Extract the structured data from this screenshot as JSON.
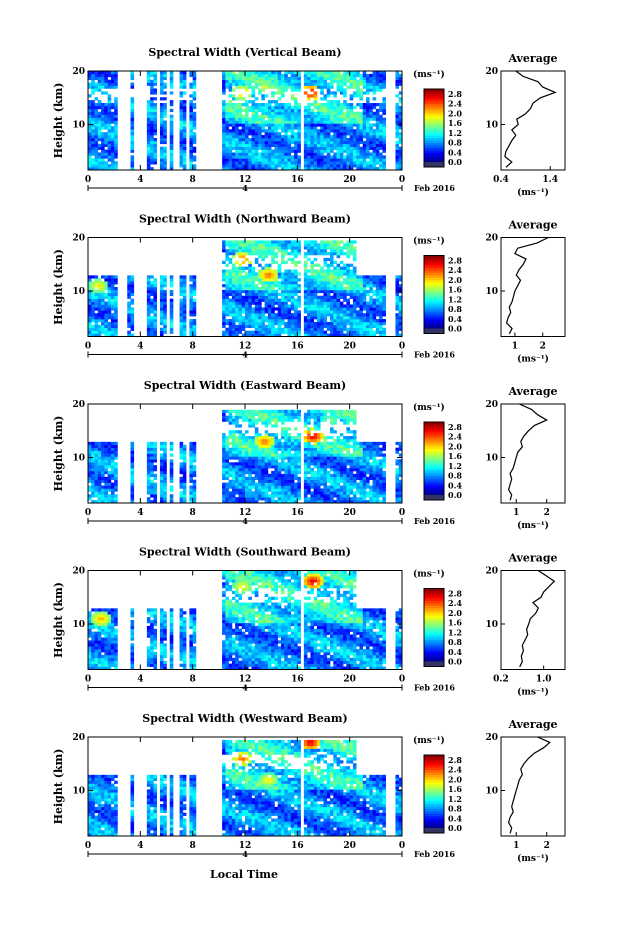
{
  "figure": {
    "x_axis_label": "Local Time",
    "date_label": "Feb 2016",
    "day_marker": "4",
    "y_axis_label": "Height (km)",
    "colorbar_unit": "(ms⁻¹)",
    "avg_title": "Average",
    "avg_xlabel": "(ms⁻¹)"
  },
  "chart_data": [
    {
      "type": "heatmap",
      "title": "Spectral Width (Vertical Beam)",
      "xlabel": "Local Time",
      "ylabel": "Height (km)",
      "xlim": [
        0,
        24
      ],
      "ylim": [
        1.5,
        20
      ],
      "xticks": [
        "0",
        "4",
        "8",
        "12",
        "16",
        "20",
        "0"
      ],
      "yticks": [
        "10",
        "20"
      ],
      "colorbar": {
        "unit": "(ms⁻¹)",
        "ticks": [
          "0.0",
          "0.4",
          "0.8",
          "1.2",
          "1.6",
          "2.0",
          "2.4",
          "2.8"
        ],
        "range": [
          0,
          3.0
        ]
      },
      "data_gaps_hours": [
        [
          2.3,
          3.2
        ],
        [
          3.4,
          4.6
        ],
        [
          5.2,
          5.6
        ],
        [
          5.9,
          6.2
        ],
        [
          6.6,
          7.0
        ],
        [
          7.5,
          7.7
        ],
        [
          8.2,
          10.2
        ],
        [
          16.3,
          16.6
        ],
        [
          22.8,
          23.4
        ]
      ],
      "echo_top_km": 20,
      "high_regions": [
        {
          "x": 17.0,
          "y": 16,
          "v": 2.8
        },
        {
          "x": 11.8,
          "y": 16,
          "v": 2.2
        },
        {
          "x": 13.5,
          "y": 17,
          "v": 1.8
        }
      ],
      "average": {
        "title": "Average",
        "xlabel": "(ms⁻¹)",
        "xticks": [
          "0.4",
          "1.4"
        ],
        "xlim": [
          0.4,
          1.7
        ],
        "height_km": [
          2,
          3,
          4,
          5,
          6,
          7,
          8,
          9,
          10,
          11,
          12,
          13,
          14,
          15,
          16,
          17,
          18,
          19,
          20
        ],
        "value": [
          0.5,
          0.62,
          0.48,
          0.5,
          0.56,
          0.62,
          0.7,
          0.62,
          0.75,
          0.72,
          0.9,
          1.0,
          1.05,
          1.2,
          1.5,
          1.25,
          1.15,
          0.85,
          0.7
        ]
      }
    },
    {
      "type": "heatmap",
      "title": "Spectral Width (Northward Beam)",
      "xlabel": "Local Time",
      "ylabel": "Height (km)",
      "xlim": [
        0,
        24
      ],
      "ylim": [
        1.5,
        20
      ],
      "xticks": [
        "0",
        "4",
        "8",
        "12",
        "16",
        "20",
        "0"
      ],
      "yticks": [
        "10",
        "20"
      ],
      "colorbar": {
        "unit": "(ms⁻¹)",
        "ticks": [
          "0.0",
          "0.4",
          "0.8",
          "1.2",
          "1.6",
          "2.0",
          "2.4",
          "2.8"
        ],
        "range": [
          0,
          3.0
        ]
      },
      "data_gaps_hours": [
        [
          2.3,
          3.0
        ],
        [
          3.4,
          4.6
        ],
        [
          5.2,
          5.6
        ],
        [
          5.9,
          6.2
        ],
        [
          6.6,
          7.0
        ],
        [
          7.5,
          7.7
        ],
        [
          8.2,
          10.2
        ],
        [
          16.3,
          16.6
        ],
        [
          22.8,
          23.4
        ]
      ],
      "echo_top_km": 19.5,
      "high_regions": [
        {
          "x": 11.8,
          "y": 16,
          "v": 2.4
        },
        {
          "x": 13.8,
          "y": 13,
          "v": 2.4
        },
        {
          "x": 0.8,
          "y": 11,
          "v": 2.0
        }
      ],
      "average": {
        "title": "Average",
        "xlabel": "(ms⁻¹)",
        "xticks": [
          "1",
          "2"
        ],
        "xlim": [
          0.5,
          2.8
        ],
        "height_km": [
          2,
          3,
          4,
          5,
          6,
          7,
          8,
          9,
          10,
          11,
          12,
          13,
          14,
          15,
          16,
          17,
          18,
          19,
          20
        ],
        "value": [
          0.8,
          0.9,
          0.7,
          0.75,
          0.85,
          0.8,
          0.9,
          0.95,
          1.0,
          1.1,
          1.2,
          1.05,
          1.15,
          1.3,
          1.4,
          1.0,
          1.1,
          1.8,
          2.2
        ]
      }
    },
    {
      "type": "heatmap",
      "title": "Spectral Width (Eastward Beam)",
      "xlabel": "Local Time",
      "ylabel": "Height (km)",
      "xlim": [
        0,
        24
      ],
      "ylim": [
        1.5,
        20
      ],
      "xticks": [
        "0",
        "4",
        "8",
        "12",
        "16",
        "20",
        "0"
      ],
      "yticks": [
        "10",
        "20"
      ],
      "colorbar": {
        "unit": "(ms⁻¹)",
        "ticks": [
          "0.0",
          "0.4",
          "0.8",
          "1.2",
          "1.6",
          "2.0",
          "2.4",
          "2.8"
        ],
        "range": [
          0,
          3.0
        ]
      },
      "data_gaps_hours": [
        [
          2.3,
          3.2
        ],
        [
          3.4,
          4.6
        ],
        [
          5.2,
          5.6
        ],
        [
          5.9,
          6.2
        ],
        [
          6.6,
          7.0
        ],
        [
          7.5,
          7.7
        ],
        [
          8.2,
          10.2
        ],
        [
          16.3,
          16.6
        ],
        [
          22.8,
          23.4
        ]
      ],
      "echo_top_km": 19,
      "high_regions": [
        {
          "x": 17.2,
          "y": 14,
          "v": 2.8
        },
        {
          "x": 13.5,
          "y": 13,
          "v": 2.4
        },
        {
          "x": 18.5,
          "y": 17,
          "v": 1.6
        }
      ],
      "average": {
        "title": "Average",
        "xlabel": "(ms⁻¹)",
        "xticks": [
          "1",
          "2"
        ],
        "xlim": [
          0.5,
          2.6
        ],
        "height_km": [
          2,
          3,
          4,
          5,
          6,
          7,
          8,
          9,
          10,
          11,
          12,
          13,
          14,
          15,
          16,
          17,
          18,
          19,
          20
        ],
        "value": [
          0.8,
          0.85,
          0.75,
          0.8,
          0.85,
          0.8,
          0.9,
          0.95,
          1.0,
          1.05,
          1.2,
          1.15,
          1.25,
          1.4,
          1.6,
          2.0,
          1.7,
          1.5,
          1.1
        ]
      }
    },
    {
      "type": "heatmap",
      "title": "Spectral Width (Southward Beam)",
      "xlabel": "Local Time",
      "ylabel": "Height (km)",
      "xlim": [
        0,
        24
      ],
      "ylim": [
        1.5,
        20
      ],
      "xticks": [
        "0",
        "4",
        "8",
        "12",
        "16",
        "20",
        "0"
      ],
      "yticks": [
        "10",
        "20"
      ],
      "colorbar": {
        "unit": "(ms⁻¹)",
        "ticks": [
          "0.0",
          "0.4",
          "0.8",
          "1.2",
          "1.6",
          "2.0",
          "2.4",
          "2.8"
        ],
        "range": [
          0,
          3.0
        ]
      },
      "data_gaps_hours": [
        [
          2.3,
          3.2
        ],
        [
          3.4,
          4.6
        ],
        [
          5.2,
          5.6
        ],
        [
          5.9,
          6.2
        ],
        [
          6.6,
          7.0
        ],
        [
          7.5,
          7.7
        ],
        [
          8.2,
          10.2
        ],
        [
          16.3,
          16.6
        ],
        [
          22.8,
          23.4
        ]
      ],
      "echo_top_km": 20,
      "high_regions": [
        {
          "x": 17.2,
          "y": 18,
          "v": 2.8
        },
        {
          "x": 1.0,
          "y": 11,
          "v": 2.2
        },
        {
          "x": 11.8,
          "y": 17,
          "v": 2.0
        }
      ],
      "average": {
        "title": "Average",
        "xlabel": "(ms⁻¹)",
        "xticks": [
          "0.2",
          "1.0"
        ],
        "xlim": [
          0.2,
          1.4
        ],
        "height_km": [
          2,
          3,
          4,
          5,
          6,
          7,
          8,
          9,
          10,
          11,
          12,
          13,
          14,
          15,
          16,
          17,
          18,
          19,
          20
        ],
        "value": [
          0.55,
          0.6,
          0.58,
          0.62,
          0.6,
          0.65,
          0.7,
          0.68,
          0.72,
          0.75,
          0.85,
          0.9,
          0.8,
          0.95,
          1.0,
          1.1,
          1.2,
          1.05,
          0.9
        ]
      }
    },
    {
      "type": "heatmap",
      "title": "Spectral Width (Westward Beam)",
      "xlabel": "Local Time",
      "ylabel": "Height (km)",
      "xlim": [
        0,
        24
      ],
      "ylim": [
        1.5,
        20
      ],
      "xticks": [
        "0",
        "4",
        "8",
        "12",
        "16",
        "20",
        "0"
      ],
      "yticks": [
        "10",
        "20"
      ],
      "colorbar": {
        "unit": "(ms⁻¹)",
        "ticks": [
          "0.0",
          "0.4",
          "0.8",
          "1.2",
          "1.6",
          "2.0",
          "2.4",
          "2.8"
        ],
        "range": [
          0,
          3.0
        ]
      },
      "data_gaps_hours": [
        [
          2.3,
          3.2
        ],
        [
          3.4,
          4.6
        ],
        [
          5.2,
          5.6
        ],
        [
          5.9,
          6.2
        ],
        [
          6.6,
          7.0
        ],
        [
          7.5,
          7.7
        ],
        [
          8.2,
          10.2
        ],
        [
          16.3,
          16.6
        ],
        [
          22.8,
          23.4
        ]
      ],
      "echo_top_km": 19.5,
      "high_regions": [
        {
          "x": 17.0,
          "y": 19,
          "v": 2.8
        },
        {
          "x": 11.8,
          "y": 16,
          "v": 2.4
        },
        {
          "x": 13.8,
          "y": 12,
          "v": 2.0
        }
      ],
      "average": {
        "title": "Average",
        "xlabel": "(ms⁻¹)",
        "xticks": [
          "1",
          "2"
        ],
        "xlim": [
          0.5,
          2.6
        ],
        "height_km": [
          2,
          3,
          4,
          5,
          6,
          7,
          8,
          9,
          10,
          11,
          12,
          13,
          14,
          15,
          16,
          17,
          18,
          19,
          20
        ],
        "value": [
          0.8,
          0.85,
          0.75,
          0.8,
          0.9,
          0.85,
          0.9,
          0.95,
          1.0,
          1.05,
          1.1,
          1.2,
          1.15,
          1.25,
          1.4,
          1.6,
          1.9,
          2.1,
          1.7
        ]
      }
    }
  ]
}
